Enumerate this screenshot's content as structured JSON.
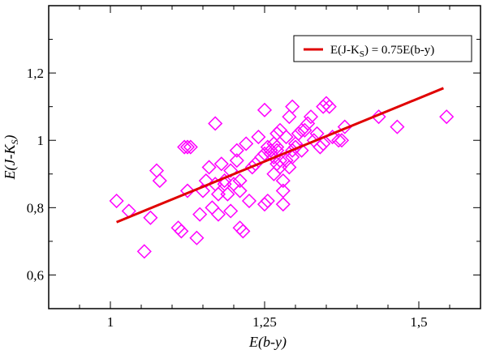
{
  "chart_data": {
    "type": "scatter",
    "xlabel": "E(b-y)",
    "ylabel": "E(J-K",
    "ylabel_sub": "S",
    "ylabel_close": ")",
    "xlim": [
      0.9,
      1.6
    ],
    "ylim": [
      0.5,
      1.4
    ],
    "xticks": [
      {
        "v": 1.0,
        "label": "1"
      },
      {
        "v": 1.25,
        "label": "1,25"
      },
      {
        "v": 1.5,
        "label": "1,5"
      }
    ],
    "yticks": [
      {
        "v": 0.6,
        "label": "0,6"
      },
      {
        "v": 0.8,
        "label": "0,8"
      },
      {
        "v": 1.0,
        "label": "1"
      },
      {
        "v": 1.2,
        "label": "1,2"
      }
    ],
    "grid": false,
    "legend_placement": "top-right",
    "colors": {
      "points": "#ff00ff",
      "fit": "#e00000"
    },
    "series": [
      {
        "kind": "points",
        "marker": "diamond",
        "x": [
          1.01,
          1.03,
          1.055,
          1.065,
          1.075,
          1.08,
          1.11,
          1.115,
          1.12,
          1.125,
          1.13,
          1.125,
          1.14,
          1.145,
          1.15,
          1.155,
          1.16,
          1.165,
          1.17,
          1.175,
          1.17,
          1.18,
          1.185,
          1.19,
          1.195,
          1.2,
          1.205,
          1.21,
          1.205,
          1.21,
          1.215,
          1.22,
          1.225,
          1.23,
          1.235,
          1.24,
          1.245,
          1.25,
          1.25,
          1.255,
          1.26,
          1.26,
          1.265,
          1.265,
          1.27,
          1.27,
          1.27,
          1.275,
          1.275,
          1.28,
          1.28,
          1.285,
          1.285,
          1.29,
          1.29,
          1.295,
          1.295,
          1.3,
          1.305,
          1.31,
          1.31,
          1.315,
          1.32,
          1.325,
          1.33,
          1.335,
          1.34,
          1.345,
          1.345,
          1.35,
          1.355,
          1.36,
          1.37,
          1.375,
          1.38,
          1.435,
          1.465,
          1.545,
          1.25,
          1.255,
          1.26,
          1.265,
          1.27,
          1.275,
          1.28,
          1.295,
          1.3,
          1.175,
          1.185,
          1.195,
          1.21
        ],
        "y": [
          0.82,
          0.79,
          0.67,
          0.77,
          0.91,
          0.88,
          0.74,
          0.73,
          0.98,
          0.85,
          0.98,
          0.98,
          0.71,
          0.78,
          0.85,
          0.88,
          0.92,
          0.8,
          1.05,
          0.78,
          0.87,
          0.93,
          0.88,
          0.84,
          0.91,
          0.87,
          0.94,
          0.85,
          0.97,
          0.74,
          0.73,
          0.99,
          0.82,
          0.92,
          0.93,
          1.01,
          0.95,
          0.81,
          1.09,
          0.82,
          0.96,
          0.97,
          0.9,
          0.95,
          0.97,
          1.02,
          0.98,
          0.92,
          1.03,
          0.88,
          0.85,
          0.94,
          1.01,
          1.07,
          0.92,
          0.95,
          1.1,
          0.99,
          1.02,
          1.03,
          0.97,
          1.03,
          1.05,
          1.07,
          1.0,
          1.02,
          0.98,
          1.1,
          0.99,
          1.11,
          1.1,
          1.01,
          1.0,
          1.0,
          1.04,
          1.07,
          1.04,
          1.07,
          0.96,
          0.98,
          0.97,
          0.99,
          0.93,
          0.94,
          0.81,
          0.97,
          0.98,
          0.84,
          0.87,
          0.79,
          0.88
        ]
      },
      {
        "kind": "line",
        "name": "E(J-K",
        "name_sub": "S",
        "name_close": ") = 0.75E(b-y)",
        "x": [
          1.01,
          1.54
        ],
        "y": [
          0.757,
          1.155
        ]
      }
    ]
  }
}
